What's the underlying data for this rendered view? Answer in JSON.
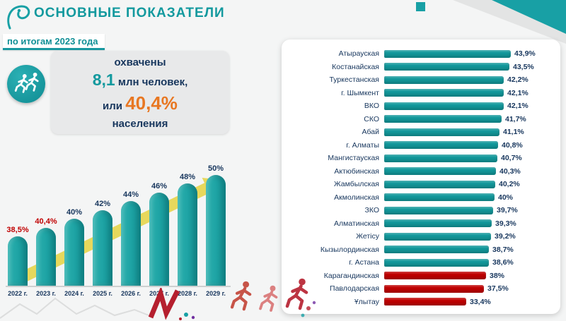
{
  "header": {
    "title": "ОСНОВНЫЕ ПОКАЗАТЕЛИ",
    "subtitle": "по итогам 2023 года"
  },
  "summary": {
    "covered_label": "охвачены",
    "value_mln": "8,1",
    "unit": "млн человек,",
    "or_label": "или",
    "percent": "40,4%",
    "population_label": "населения",
    "icon": "runners-icon"
  },
  "colors": {
    "teal": "#12989b",
    "teal_light": "#2bb0ae",
    "red": "#c00000",
    "navy": "#17365d",
    "orange": "#e87722",
    "arrow_yellow": "#e6d54b"
  },
  "chart_data": [
    {
      "type": "bar",
      "title": "",
      "categories": [
        "2022 г.",
        "2023 г.",
        "2024 г.",
        "2025 г.",
        "2026 г.",
        "2027 г.",
        "2028 г.",
        "2029 г."
      ],
      "values": [
        38.5,
        40.4,
        40,
        42,
        44,
        46,
        48,
        50
      ],
      "labels": [
        "38,5%",
        "40,4%",
        "40%",
        "42%",
        "44%",
        "46%",
        "48%",
        "50%"
      ],
      "label_colors": [
        "#c00000",
        "#c00000",
        "#17365d",
        "#17365d",
        "#17365d",
        "#17365d",
        "#17365d",
        "#17365d"
      ],
      "bar_color": "#12989b",
      "xlabel": "",
      "ylabel": "",
      "ylim": [
        0,
        50
      ],
      "grid": false,
      "legend": false
    },
    {
      "type": "bar",
      "orientation": "horizontal",
      "title": "",
      "categories": [
        "Атырауская",
        "Костанайская",
        "Туркестанская",
        "г. Шымкент",
        "ВКО",
        "СКО",
        "Абай",
        "г. Алматы",
        "Мангистауская",
        "Актюбинская",
        "Жамбылская",
        "Акмолинская",
        "ЗКО",
        "Алматинская",
        "Жетісу",
        "Кызылординская",
        "г. Астана",
        "Карагандинская",
        "Павлодарская",
        "Ұлытау"
      ],
      "values": [
        43.9,
        43.5,
        42.2,
        42.1,
        42.1,
        41.7,
        41.1,
        40.8,
        40.7,
        40.3,
        40.2,
        40,
        39.7,
        39.3,
        39.2,
        38.7,
        38.6,
        38,
        37.5,
        33.4
      ],
      "labels": [
        "43,9%",
        "43,5%",
        "42,2%",
        "42,1%",
        "42,1%",
        "41,7%",
        "41,1%",
        "40,8%",
        "40,7%",
        "40,3%",
        "40,2%",
        "40%",
        "39,7%",
        "39,3%",
        "39,2%",
        "38,7%",
        "38,6%",
        "38%",
        "37,5%",
        "33,4%"
      ],
      "bar_colors": [
        "#12989b",
        "#12989b",
        "#12989b",
        "#12989b",
        "#12989b",
        "#12989b",
        "#12989b",
        "#12989b",
        "#12989b",
        "#12989b",
        "#12989b",
        "#12989b",
        "#12989b",
        "#12989b",
        "#12989b",
        "#12989b",
        "#12989b",
        "#c00000",
        "#c00000",
        "#c00000"
      ],
      "xlim": [
        0,
        50
      ],
      "grid": false,
      "legend": false
    }
  ]
}
